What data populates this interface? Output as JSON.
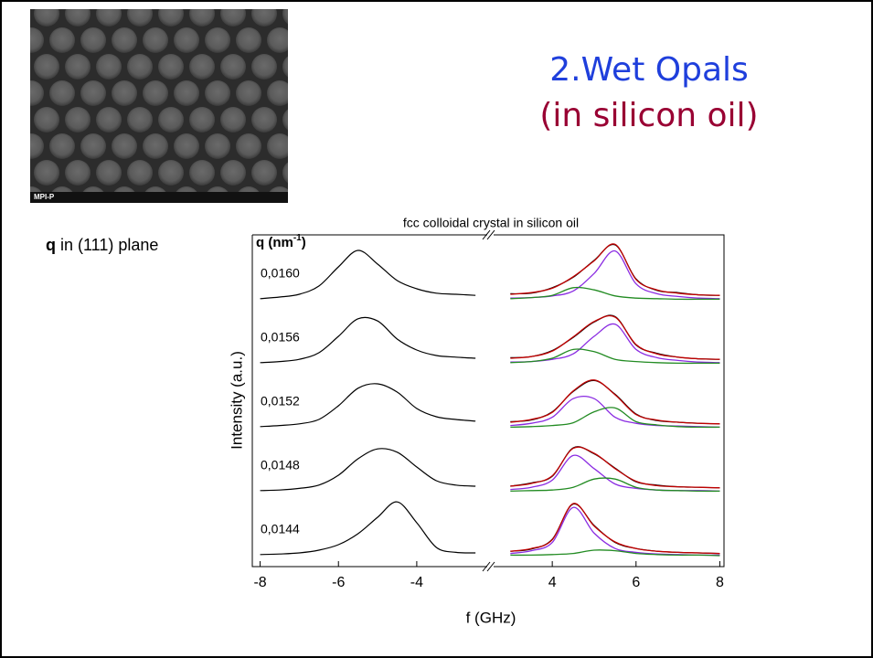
{
  "slide": {
    "title": "2.Wet Opals",
    "subtitle": "(in silicon oil)",
    "sem_label": "MPI-P",
    "plane_note": {
      "bold": "q",
      "text": " in (111) plane"
    }
  },
  "chart_data": {
    "type": "line",
    "title": "fcc colloidal crystal in silicon oil",
    "x_label": "f (GHz)",
    "y_label": "Intensity (a.u.)",
    "q_header": {
      "text": "q (nm",
      "exponent": "-1",
      "close": ")"
    },
    "colors": {
      "left": "#000000",
      "data": "#000000",
      "fit": "#c00000",
      "peak1": "#8a2be2",
      "peak2": "#228b22"
    },
    "panels": [
      {
        "xlim": [
          -8.2,
          -2.2
        ],
        "xticks": [
          -8,
          -6,
          -4
        ],
        "x": [
          -8,
          -7.5,
          -7,
          -6.5,
          -6,
          -5.5,
          -5,
          -4.5,
          -4,
          -3.5,
          -3,
          -2.5
        ]
      },
      {
        "xlim": [
          2.6,
          8.1
        ],
        "xticks": [
          4,
          6,
          8
        ],
        "x": [
          3,
          3.5,
          4,
          4.5,
          5,
          5.5,
          6,
          6.5,
          7,
          7.5,
          8
        ]
      }
    ],
    "spectra": [
      {
        "label": "0,0160",
        "left": [
          0.02,
          0.05,
          0.1,
          0.25,
          0.6,
          0.9,
          0.65,
          0.35,
          0.2,
          0.12,
          0.1,
          0.08
        ],
        "data": [
          0.11,
          0.12,
          0.22,
          0.41,
          0.72,
          1.0,
          0.38,
          0.17,
          0.13,
          0.09,
          0.08
        ],
        "fit": [
          0.1,
          0.13,
          0.21,
          0.42,
          0.71,
          1.01,
          0.37,
          0.18,
          0.12,
          0.09,
          0.08
        ],
        "peak1": [
          0.03,
          0.04,
          0.07,
          0.16,
          0.48,
          0.89,
          0.29,
          0.11,
          0.06,
          0.03,
          0.02
        ],
        "peak2": [
          0.02,
          0.04,
          0.08,
          0.22,
          0.18,
          0.07,
          0.03,
          0.02,
          0.01,
          0.01,
          0.01
        ]
      },
      {
        "label": "0,0156",
        "left": [
          0.02,
          0.04,
          0.08,
          0.2,
          0.5,
          0.82,
          0.78,
          0.45,
          0.25,
          0.15,
          0.12,
          0.1
        ],
        "data": [
          0.11,
          0.13,
          0.24,
          0.48,
          0.76,
          0.86,
          0.34,
          0.19,
          0.12,
          0.09,
          0.08
        ],
        "fit": [
          0.1,
          0.13,
          0.23,
          0.49,
          0.77,
          0.85,
          0.35,
          0.18,
          0.12,
          0.09,
          0.08
        ],
        "peak1": [
          0.03,
          0.04,
          0.08,
          0.18,
          0.5,
          0.72,
          0.26,
          0.11,
          0.06,
          0.03,
          0.02
        ],
        "peak2": [
          0.02,
          0.04,
          0.1,
          0.26,
          0.22,
          0.08,
          0.04,
          0.02,
          0.01,
          0.01,
          0.01
        ]
      },
      {
        "label": "0,0152",
        "left": [
          0.02,
          0.04,
          0.07,
          0.15,
          0.4,
          0.72,
          0.8,
          0.65,
          0.35,
          0.2,
          0.15,
          0.12
        ],
        "data": [
          0.11,
          0.14,
          0.29,
          0.66,
          0.86,
          0.61,
          0.25,
          0.13,
          0.1,
          0.08,
          0.07
        ],
        "fit": [
          0.1,
          0.15,
          0.28,
          0.67,
          0.87,
          0.6,
          0.24,
          0.14,
          0.1,
          0.08,
          0.07
        ],
        "peak1": [
          0.04,
          0.08,
          0.19,
          0.53,
          0.53,
          0.19,
          0.08,
          0.04,
          0.03,
          0.02,
          0.01
        ],
        "peak2": [
          0.01,
          0.02,
          0.04,
          0.09,
          0.29,
          0.36,
          0.11,
          0.05,
          0.02,
          0.01,
          0.01
        ]
      },
      {
        "label": "0,0148",
        "left": [
          0.02,
          0.03,
          0.06,
          0.12,
          0.3,
          0.6,
          0.78,
          0.72,
          0.45,
          0.2,
          0.12,
          0.1
        ],
        "data": [
          0.1,
          0.16,
          0.28,
          0.8,
          0.69,
          0.43,
          0.18,
          0.12,
          0.09,
          0.08,
          0.07
        ],
        "fit": [
          0.1,
          0.15,
          0.29,
          0.79,
          0.7,
          0.42,
          0.19,
          0.11,
          0.09,
          0.08,
          0.07
        ],
        "peak1": [
          0.04,
          0.08,
          0.21,
          0.66,
          0.42,
          0.14,
          0.06,
          0.03,
          0.02,
          0.02,
          0.01
        ],
        "peak2": [
          0.01,
          0.02,
          0.03,
          0.08,
          0.23,
          0.23,
          0.08,
          0.03,
          0.02,
          0.01,
          0.01
        ]
      },
      {
        "label": "0,0144",
        "left": [
          0.02,
          0.03,
          0.05,
          0.1,
          0.2,
          0.4,
          0.7,
          0.98,
          0.6,
          0.15,
          0.06,
          0.05
        ],
        "data": [
          0.08,
          0.12,
          0.3,
          0.94,
          0.55,
          0.24,
          0.13,
          0.08,
          0.06,
          0.05,
          0.04
        ],
        "fit": [
          0.08,
          0.13,
          0.29,
          0.95,
          0.54,
          0.25,
          0.13,
          0.08,
          0.06,
          0.05,
          0.04
        ],
        "peak1": [
          0.04,
          0.09,
          0.24,
          0.88,
          0.41,
          0.13,
          0.06,
          0.03,
          0.02,
          0.01,
          0.01
        ],
        "peak2": [
          0.01,
          0.01,
          0.02,
          0.04,
          0.1,
          0.09,
          0.04,
          0.02,
          0.01,
          0.01,
          0
        ]
      }
    ]
  }
}
